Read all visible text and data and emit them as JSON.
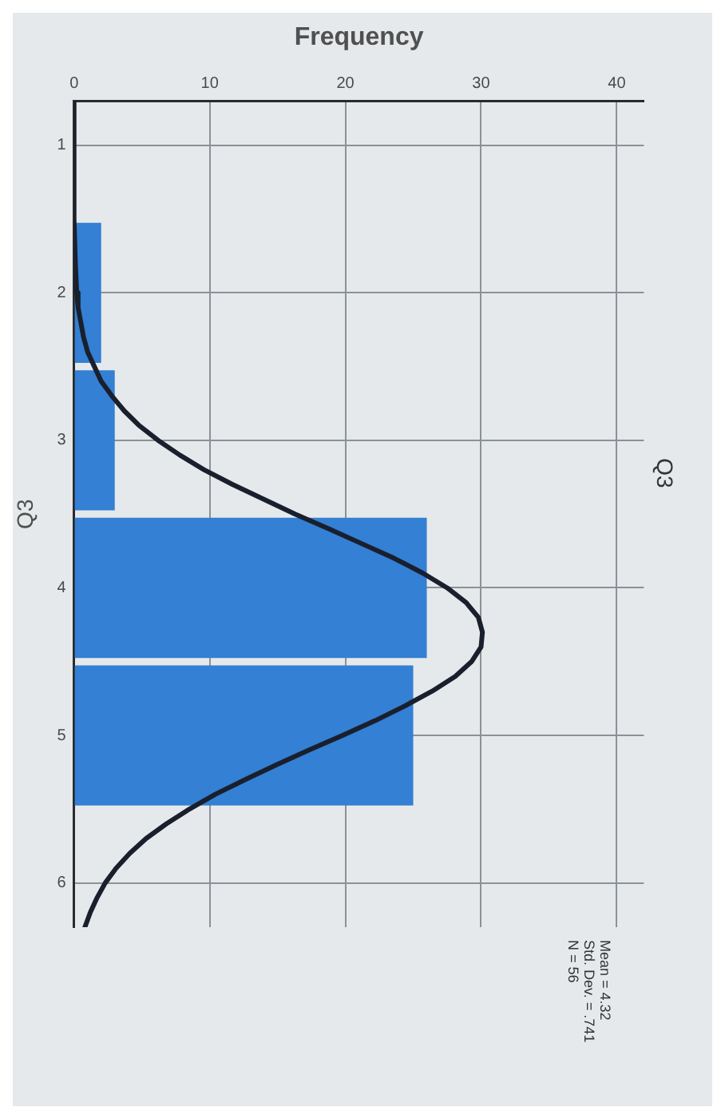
{
  "chart_data": {
    "type": "histogram",
    "title": "Q3",
    "xlabel": "Frequency",
    "ylabel": "Q3",
    "orientation": "horizontal",
    "bins": [
      1.5,
      2.5,
      3.5,
      4.5,
      5.5
    ],
    "series": [
      {
        "color": "#3380d4",
        "values": [
          2,
          3,
          26,
          25
        ]
      },
      {
        "type": "line",
        "color": "#1a1f2e",
        "x": [
          0.7,
          1.0,
          1.5,
          1.8,
          2.0,
          2.1,
          2.2,
          2.3,
          2.4,
          2.5,
          2.6,
          2.7,
          2.8,
          2.9,
          3.0,
          3.1,
          3.2,
          3.3,
          3.4,
          3.5,
          3.6,
          3.7,
          3.8,
          3.9,
          4.0,
          4.1,
          4.2,
          4.3,
          4.4,
          4.5,
          4.6,
          4.7,
          4.8,
          4.9,
          5.0,
          5.1,
          5.2,
          5.3,
          5.4,
          5.5,
          5.6,
          5.7,
          5.8,
          5.9,
          6.0,
          6.1,
          6.2,
          6.3
        ],
        "values": [
          0,
          0,
          0,
          0.1,
          0.2,
          0.3,
          0.5,
          0.7,
          1.0,
          1.5,
          2.0,
          2.8,
          3.7,
          4.8,
          6.2,
          7.8,
          9.6,
          11.7,
          14.0,
          16.3,
          18.8,
          21.2,
          23.6,
          25.7,
          27.5,
          28.9,
          29.8,
          30.1,
          30.0,
          29.3,
          28.1,
          26.4,
          24.4,
          22.2,
          19.8,
          17.3,
          14.9,
          12.6,
          10.4,
          8.5,
          6.8,
          5.3,
          4.1,
          3.1,
          2.3,
          1.7,
          1.2,
          0.8
        ]
      }
    ],
    "xlim": [
      0,
      42
    ],
    "xticks": [
      0,
      10,
      20,
      30,
      40
    ],
    "ylim": [
      6.3,
      0.7
    ],
    "yticks": [
      1,
      2,
      3,
      4,
      5,
      6
    ],
    "grid": true,
    "annotations": [
      "Mean = 4.32",
      "Std. Dev. = .741",
      "N = 56"
    ]
  }
}
